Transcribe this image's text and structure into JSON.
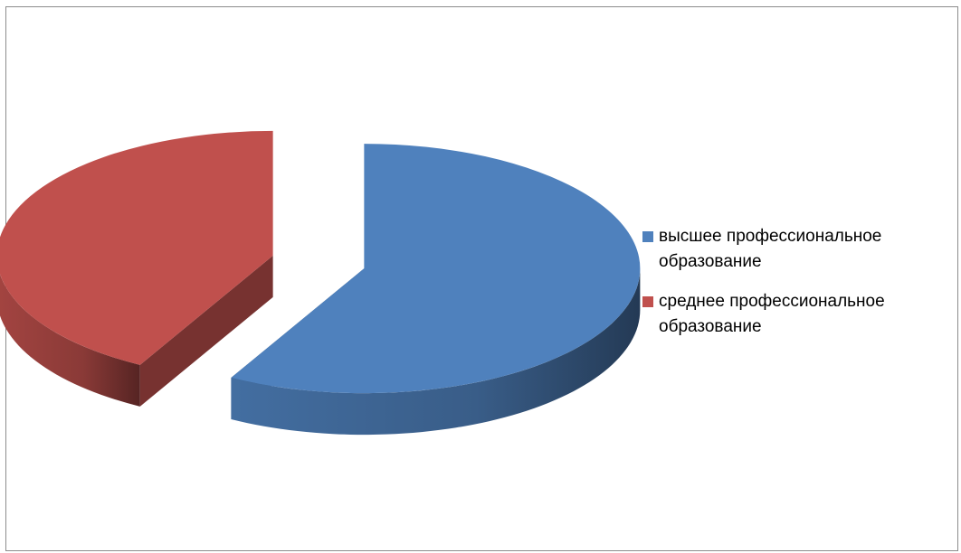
{
  "chart_data": {
    "type": "pie",
    "style": "3d-exploded",
    "title": "",
    "legend_position": "right",
    "slices": [
      {
        "name": "высшее профессиональное образование",
        "value": 58,
        "color": "#4f81bd"
      },
      {
        "name": "среднее профессиональное образование",
        "value": 42,
        "color": "#c0504d"
      }
    ]
  }
}
